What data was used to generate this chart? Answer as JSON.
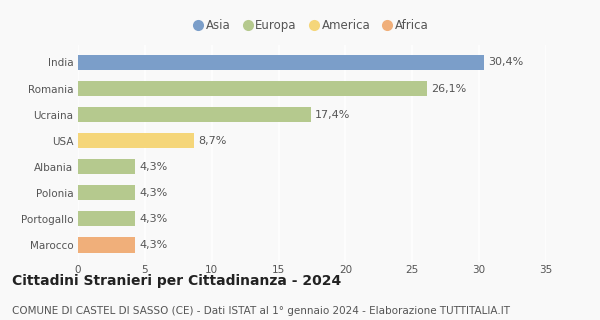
{
  "categories": [
    "India",
    "Romania",
    "Ucraina",
    "USA",
    "Albania",
    "Polonia",
    "Portogallo",
    "Marocco"
  ],
  "values": [
    30.4,
    26.1,
    17.4,
    8.7,
    4.3,
    4.3,
    4.3,
    4.3
  ],
  "labels": [
    "30,4%",
    "26,1%",
    "17,4%",
    "8,7%",
    "4,3%",
    "4,3%",
    "4,3%",
    "4,3%"
  ],
  "colors": [
    "#7b9ec9",
    "#b5c98e",
    "#b5c98e",
    "#f5d67a",
    "#b5c98e",
    "#b5c98e",
    "#b5c98e",
    "#f0af7a"
  ],
  "legend": [
    {
      "label": "Asia",
      "color": "#7b9ec9"
    },
    {
      "label": "Europa",
      "color": "#b5c98e"
    },
    {
      "label": "America",
      "color": "#f5d67a"
    },
    {
      "label": "Africa",
      "color": "#f0af7a"
    }
  ],
  "xlim": [
    0,
    35
  ],
  "xticks": [
    0,
    5,
    10,
    15,
    20,
    25,
    30,
    35
  ],
  "title": "Cittadini Stranieri per Cittadinanza - 2024",
  "subtitle": "COMUNE DI CASTEL DI SASSO (CE) - Dati ISTAT al 1° gennaio 2024 - Elaborazione TUTTITALIA.IT",
  "background_color": "#f9f9f9",
  "grid_color": "#ffffff",
  "title_fontsize": 10,
  "subtitle_fontsize": 7.5,
  "label_fontsize": 8,
  "tick_fontsize": 7.5,
  "bar_height": 0.6
}
